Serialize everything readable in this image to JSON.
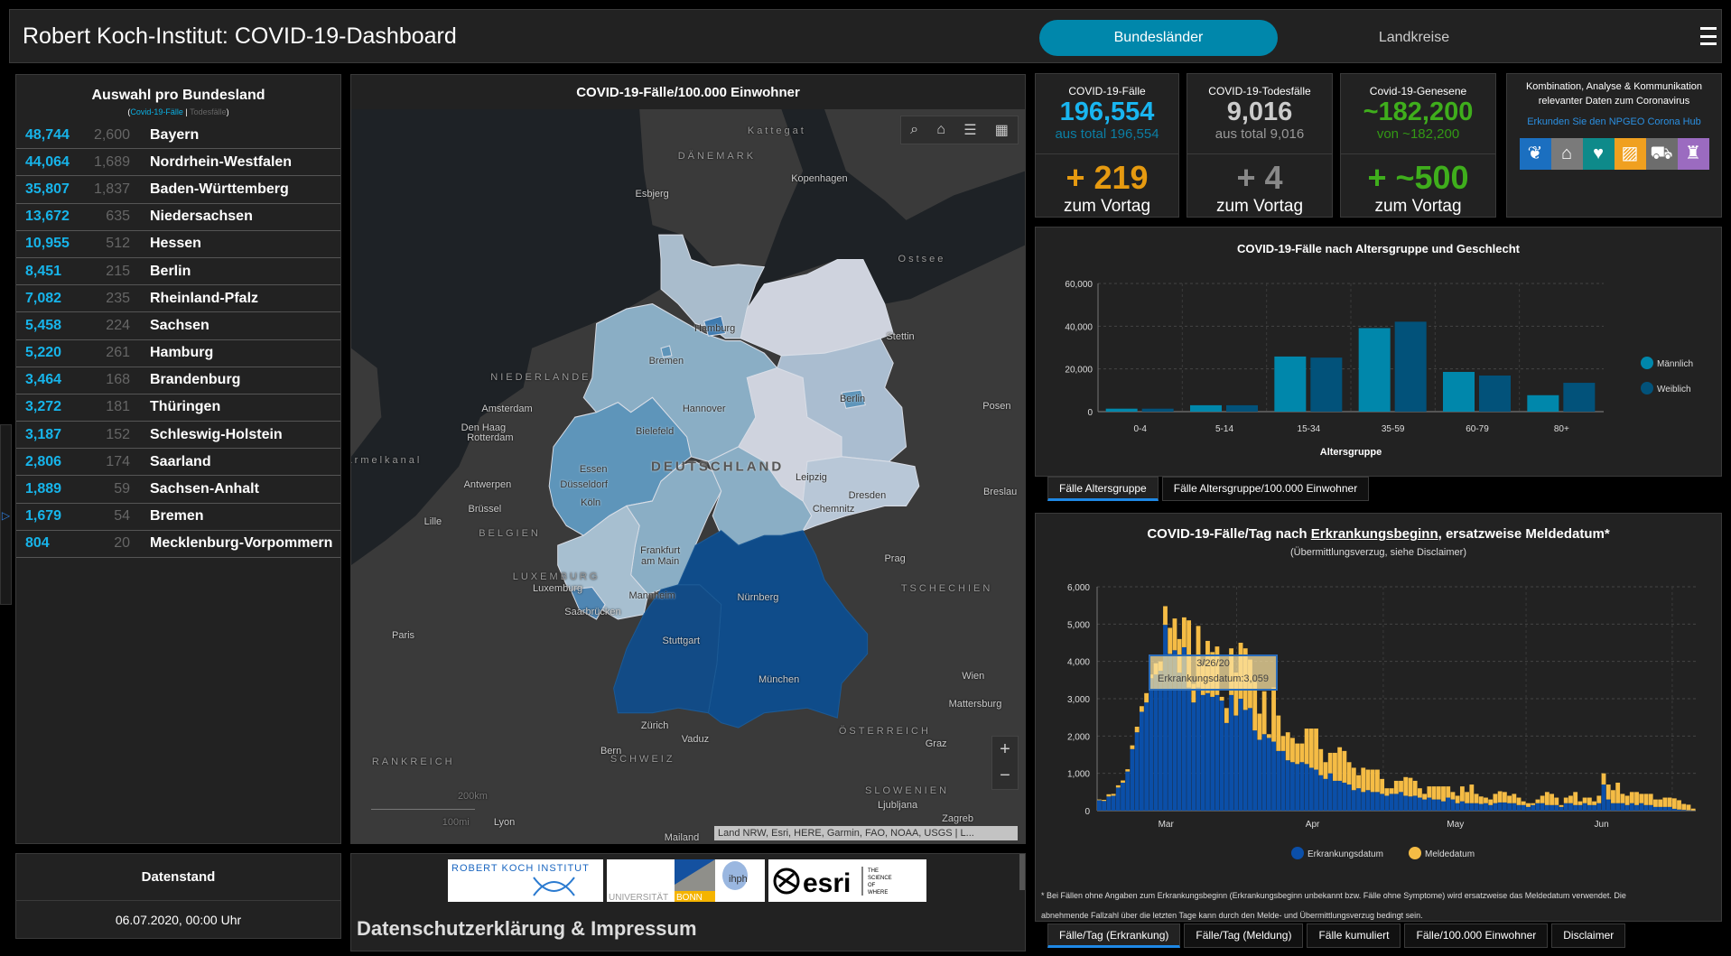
{
  "header": {
    "title": "Robert Koch-Institut: COVID-19-Dashboard",
    "tabs": [
      "Bundesländer",
      "Landkreise"
    ],
    "menu_icon": "hamburger-menu-icon"
  },
  "states": {
    "title": "Auswahl pro Bundesland",
    "legend_cases": "Covid-19-Fälle",
    "legend_sep": "|",
    "legend_deaths": "Todesfälle",
    "rows": [
      {
        "cases": "48,744",
        "deaths": "2,600",
        "name": "Bayern"
      },
      {
        "cases": "44,064",
        "deaths": "1,689",
        "name": "Nordrhein-Westfalen"
      },
      {
        "cases": "35,807",
        "deaths": "1,837",
        "name": "Baden-Württemberg"
      },
      {
        "cases": "13,672",
        "deaths": "635",
        "name": "Niedersachsen"
      },
      {
        "cases": "10,955",
        "deaths": "512",
        "name": "Hessen"
      },
      {
        "cases": "8,451",
        "deaths": "215",
        "name": "Berlin"
      },
      {
        "cases": "7,082",
        "deaths": "235",
        "name": "Rheinland-Pfalz"
      },
      {
        "cases": "5,458",
        "deaths": "224",
        "name": "Sachsen"
      },
      {
        "cases": "5,220",
        "deaths": "261",
        "name": "Hamburg"
      },
      {
        "cases": "3,464",
        "deaths": "168",
        "name": "Brandenburg"
      },
      {
        "cases": "3,272",
        "deaths": "181",
        "name": "Thüringen"
      },
      {
        "cases": "3,187",
        "deaths": "152",
        "name": "Schleswig-Holstein"
      },
      {
        "cases": "2,806",
        "deaths": "174",
        "name": "Saarland"
      },
      {
        "cases": "1,889",
        "deaths": "59",
        "name": "Sachsen-Anhalt"
      },
      {
        "cases": "1,679",
        "deaths": "54",
        "name": "Bremen"
      },
      {
        "cases": "804",
        "deaths": "20",
        "name": "Mecklenburg-Vorpommern"
      }
    ]
  },
  "datenstand": {
    "title": "Datenstand",
    "value": "06.07.2020, 00:00 Uhr"
  },
  "map": {
    "title": "COVID-19-Fälle/100.000 Einwohner",
    "labels": {
      "kattegat": "Kattegat",
      "daenemark": "DÄNEMARK",
      "kopenhagen": "Kopenhagen",
      "esbjerg": "Esbjerg",
      "ostsee": "Ostsee",
      "hamburg": "Hamburg",
      "bremen": "Bremen",
      "stettin": "Stettin",
      "niederlande": "NIEDERLANDE",
      "amsterdam": "Amsterdam",
      "denhaag": "Den Haag",
      "rotterdam": "Rotterdam",
      "hannover": "Hannover",
      "berlin": "Berlin",
      "posen": "Posen",
      "bielefeld": "Bielefeld",
      "aermelkanal": "Ärmelkanal",
      "deutschland": "DEUTSCHLAND",
      "essen": "Essen",
      "duesseldorf": "Düsseldorf",
      "leipzig": "Leipzig",
      "antwerpen": "Antwerpen",
      "dresden": "Dresden",
      "breslau": "Breslau",
      "koeln": "Köln",
      "chemnitz": "Chemnitz",
      "bruessel": "Brüssel",
      "lille": "Lille",
      "belgien": "BELGIEN",
      "frankfurt": "Frankfurt am Main",
      "prag": "Prag",
      "luxemburg_land": "LUXEMBURG",
      "luxemburg": "Luxemburg",
      "mannheim": "Mannheim",
      "tschechien": "TSCHECHIEN",
      "nuernberg": "Nürnberg",
      "saarbruecken": "Saarbrücken",
      "paris": "Paris",
      "stuttgart": "Stuttgart",
      "muenchen": "München",
      "wien": "Wien",
      "mattersburg": "Mattersburg",
      "zuerich": "Zürich",
      "vaduz": "Vaduz",
      "oesterreich": "ÖSTERREICH",
      "graz": "Graz",
      "bern": "Bern",
      "schweiz": "SCHWEIZ",
      "frankreich": "RANKREICH",
      "slowenien": "SLOWENIEN",
      "ljubljana": "Ljubljana",
      "zagreb": "Zagreb",
      "mailand": "Mailand",
      "lyon": "Lyon"
    },
    "scale_km": "200km",
    "scale_mi": "100mi",
    "attribution": "Land NRW, Esri, HERE, Garmin, FAO, NOAA, USGS | L...",
    "zoom_in": "+",
    "zoom_out": "−",
    "colors": {
      "low": "#cfd3de",
      "mid_low": "#aabdd0",
      "mid": "#8aaec5",
      "high": "#5e95ba",
      "very_high": "#0f4c8a"
    }
  },
  "footer": {
    "logos": [
      "ROBERT KOCH INSTITUT",
      "UNIVERSITÄT BONN",
      "esri THE SCIENCE OF WHERE"
    ],
    "impressum": "Datenschutzerklärung & Impressum"
  },
  "kpis": [
    {
      "label": "COVID-19-Fälle",
      "value": "196,554",
      "sub": "aus total 196,554",
      "increase": "+ 219",
      "increase_label": "zum Vortag",
      "color": "#19b5f0",
      "sub_color": "#0b7fa5",
      "inc_color": "#e69a10"
    },
    {
      "label": "COVID-19-Todesfälle",
      "value": "9,016",
      "sub": "aus total 9,016",
      "increase": "+ 4",
      "increase_label": "zum Vortag",
      "color": "#ccc",
      "sub_color": "#999",
      "inc_color": "#888"
    },
    {
      "label": "Covid-19-Genesene",
      "value": "~182,200",
      "sub": "von ~182,200",
      "increase": "+ ~500",
      "increase_label": "zum Vortag",
      "color": "#3fae1c",
      "sub_color": "#339915",
      "inc_color": "#3fae1c"
    }
  ],
  "hub": {
    "title": "Kombination, Analyse & Kommunikation relevanter Daten zum Coronavirus",
    "link": "Erkunden Sie den NPGEO Corona Hub",
    "icons": [
      {
        "name": "plant-hand-icon",
        "color": "#1b6fc0",
        "glyph": "❦"
      },
      {
        "name": "houses-pin-icon",
        "color": "#7a7a7a",
        "glyph": "⌂"
      },
      {
        "name": "heart-pulse-icon",
        "color": "#0e8a8a",
        "glyph": "♥"
      },
      {
        "name": "map-area-icon",
        "color": "#f0a020",
        "glyph": "▨"
      },
      {
        "name": "cars-icon",
        "color": "#6d6d6d",
        "glyph": "⛟"
      },
      {
        "name": "bell-tower-icon",
        "color": "#9b6bc0",
        "glyph": "♜"
      }
    ]
  },
  "age_tabs": [
    "Fälle Altersgruppe",
    "Fälle Altersgruppe/100.000 Einwohner"
  ],
  "epi_tabs": [
    "Fälle/Tag (Erkrankung)",
    "Fälle/Tag (Meldung)",
    "Fälle kumuliert",
    "Fälle/100.000 Einwohner",
    "Disclaimer"
  ],
  "epi_text": {
    "title_a": "COVID-19-Fälle/Tag nach ",
    "title_link": "Erkrankungsbeginn",
    "title_b": ", ersatzweise Meldedatum*",
    "subtitle": "(Übermittlungsverzug, siehe Disclaimer)",
    "footnote_1": "* Bei Fällen ohne Angaben zum Erkrankungsbeginn (Erkrankungsbeginn unbekannt bzw. Fälle ohne Symptome) wird ersatzweise das Meldedatum verwendet. Die",
    "footnote_2": "abnehmende Fallzahl über die letzten Tage kann durch den Melde- und Übermittlungsverzug bedingt sein.",
    "tooltip_date": "3/26/20",
    "tooltip_value": "Erkrankungsdatum:3,059"
  },
  "chart_data": [
    {
      "type": "bar",
      "title": "COVID-19-Fälle nach Altersgruppe und Geschlecht",
      "xlabel": "Altersgruppe",
      "ylabel": "",
      "categories": [
        "0-4",
        "5-14",
        "15-34",
        "35-59",
        "60-79",
        "80+"
      ],
      "series": [
        {
          "name": "Männlich",
          "color": "#0087ab",
          "values": [
            1400,
            3000,
            25800,
            39100,
            18600,
            7700
          ]
        },
        {
          "name": "Weiblich",
          "color": "#02527a",
          "values": [
            1400,
            3000,
            25300,
            42100,
            16900,
            13500
          ]
        }
      ],
      "ylim": [
        0,
        60000
      ],
      "yticks": [
        "0",
        "20,000",
        "40,000",
        "60,000"
      ],
      "ytick_values": [
        0,
        20000,
        40000,
        60000
      ],
      "grid": true,
      "legend": "right"
    },
    {
      "type": "bar",
      "stacked": true,
      "title": "COVID-19-Fälle/Tag nach Erkrankungsbeginn, ersatzweise Meldedatum*",
      "ylim": [
        0,
        6000
      ],
      "yticks": [
        "0",
        "1,000",
        "2,000",
        "3,000",
        "4,000",
        "5,000",
        "6,000"
      ],
      "ytick_values": [
        0,
        1000,
        2000,
        3000,
        4000,
        5000,
        6000
      ],
      "xticks": [
        {
          "label": "Mar",
          "day": 14.6
        },
        {
          "label": "Apr",
          "day": 45.7
        },
        {
          "label": "May",
          "day": 76
        },
        {
          "label": "Jun",
          "day": 107
        }
      ],
      "grid": true,
      "legend": "bottom",
      "series": [
        {
          "name": "Erkrankungsdatum",
          "color": "#0b4fa8",
          "values": [
            280,
            260,
            380,
            400,
            620,
            750,
            1050,
            1650,
            2100,
            2650,
            2900,
            3550,
            3650,
            3750,
            4980,
            4200,
            4300,
            3700,
            4380,
            3300,
            2900,
            3300,
            3100,
            3150,
            3050,
            3100,
            2950,
            2350,
            3100,
            2550,
            3000,
            2700,
            2750,
            2150,
            1900,
            2050,
            1950,
            1850,
            1600,
            1600,
            1350,
            1300,
            1250,
            1300,
            1250,
            1150,
            1100,
            950,
            850,
            1000,
            800,
            800,
            750,
            700,
            550,
            600,
            500,
            550,
            500,
            500,
            450,
            400,
            450,
            450,
            500,
            400,
            380,
            400,
            350,
            300,
            350,
            300,
            300,
            250,
            350,
            300,
            200,
            250,
            200,
            200,
            200,
            180,
            200,
            150,
            200,
            220,
            220,
            200,
            200,
            150,
            150,
            100,
            150,
            200,
            200,
            150,
            150,
            150,
            100,
            200,
            200,
            150,
            150,
            200,
            150,
            150,
            200,
            700,
            300,
            200,
            200,
            200,
            150,
            200,
            150,
            200,
            150,
            150,
            100,
            100,
            100,
            100,
            50,
            30,
            20,
            10,
            5
          ]
        },
        {
          "name": "Meldedatum",
          "color": "#f5bc45",
          "values": [
            20,
            30,
            60,
            50,
            60,
            60,
            60,
            100,
            150,
            150,
            250,
            100,
            300,
            250,
            500,
            700,
            850,
            900,
            800,
            1800,
            500,
            1650,
            800,
            1400,
            1200,
            1300,
            100,
            400,
            1250,
            1150,
            1500,
            1650,
            1300,
            1300,
            700,
            1150,
            100,
            1450,
            950,
            400,
            750,
            650,
            550,
            500,
            950,
            1050,
            1100,
            700,
            450,
            550,
            750,
            900,
            850,
            600,
            600,
            350,
            650,
            550,
            600,
            600,
            400,
            200,
            150,
            350,
            300,
            500,
            500,
            400,
            250,
            150,
            300,
            350,
            350,
            400,
            300,
            200,
            200,
            400,
            300,
            500,
            250,
            200,
            150,
            150,
            250,
            300,
            280,
            200,
            250,
            200,
            100,
            100,
            50,
            100,
            200,
            350,
            300,
            200,
            50,
            150,
            200,
            350,
            100,
            150,
            200,
            100,
            200,
            300,
            400,
            350,
            550,
            250,
            250,
            300,
            350,
            250,
            300,
            300,
            200,
            200,
            250,
            250,
            280,
            250,
            160,
            150,
            50
          ]
        }
      ]
    }
  ]
}
